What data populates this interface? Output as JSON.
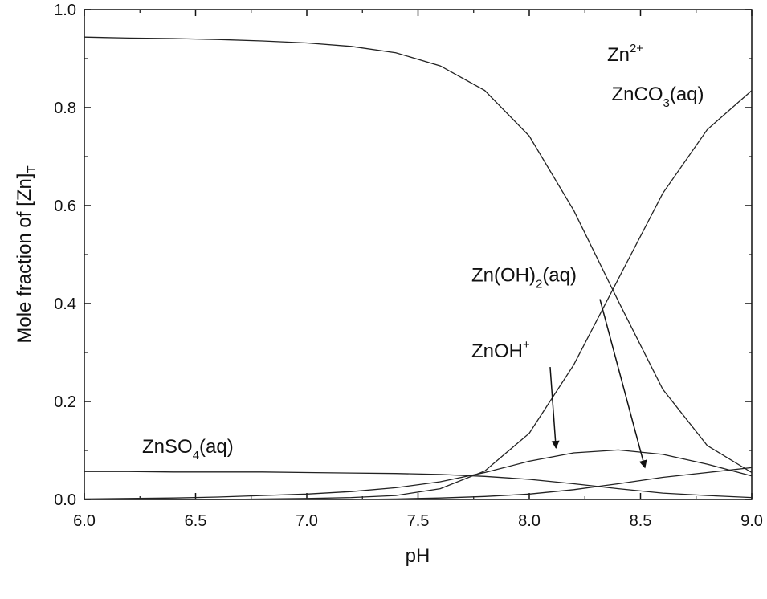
{
  "chart_data": {
    "type": "line",
    "xlabel": "pH",
    "ylabel": {
      "main": "Mole fraction of [Zn]",
      "sub": "T"
    },
    "xlim": [
      6.0,
      9.0
    ],
    "ylim": [
      0.0,
      1.0
    ],
    "xticks": [
      "6.0",
      "6.5",
      "7.0",
      "7.5",
      "8.0",
      "8.5",
      "9.0"
    ],
    "yticks": [
      "0.0",
      "0.2",
      "0.4",
      "0.6",
      "0.8",
      "1.0"
    ],
    "grid": false,
    "legend": "none",
    "x": [
      6.0,
      6.2,
      6.4,
      6.6,
      6.8,
      7.0,
      7.2,
      7.4,
      7.6,
      7.8,
      8.0,
      8.2,
      8.4,
      8.6,
      8.8,
      9.0
    ],
    "series": [
      {
        "name": "Zn2+",
        "values": [
          0.944,
          0.942,
          0.941,
          0.939,
          0.936,
          0.932,
          0.925,
          0.912,
          0.885,
          0.835,
          0.742,
          0.59,
          0.405,
          0.225,
          0.11,
          0.055
        ]
      },
      {
        "name": "ZnCO3(aq)",
        "values": [
          0.0,
          0.0,
          0.0,
          0.0,
          0.001,
          0.002,
          0.004,
          0.008,
          0.022,
          0.058,
          0.135,
          0.275,
          0.45,
          0.625,
          0.755,
          0.835
        ]
      },
      {
        "name": "Zn(OH)2(aq)",
        "values": [
          0.0,
          0.0,
          0.0,
          0.0,
          0.0,
          0.0,
          0.0,
          0.001,
          0.003,
          0.006,
          0.011,
          0.02,
          0.032,
          0.045,
          0.055,
          0.065
        ]
      },
      {
        "name": "ZnOH+",
        "values": [
          0.001,
          0.002,
          0.003,
          0.005,
          0.008,
          0.011,
          0.016,
          0.024,
          0.036,
          0.055,
          0.078,
          0.095,
          0.101,
          0.092,
          0.072,
          0.048
        ]
      },
      {
        "name": "ZnSO4(aq)",
        "values": [
          0.057,
          0.057,
          0.056,
          0.056,
          0.056,
          0.055,
          0.054,
          0.053,
          0.051,
          0.047,
          0.041,
          0.032,
          0.022,
          0.013,
          0.008,
          0.004
        ]
      }
    ],
    "annotations": [
      {
        "id": "zn2",
        "main": "Zn",
        "sup": "2+",
        "x": 8.35,
        "y": 0.895
      },
      {
        "id": "znco3",
        "main": "ZnCO",
        "sub": "3",
        "tail": "(aq)",
        "x": 8.37,
        "y": 0.815
      },
      {
        "id": "znoh2",
        "main": "Zn(OH)",
        "sub": "2",
        "tail": "(aq)",
        "x": 7.74,
        "y": 0.445,
        "arrow_to": [
          8.52,
          0.065
        ]
      },
      {
        "id": "znoh",
        "main": "ZnOH",
        "sup": "+",
        "x": 7.74,
        "y": 0.29,
        "arrow_to": [
          8.12,
          0.105
        ]
      },
      {
        "id": "znso4",
        "main": "ZnSO",
        "sub": "4",
        "tail": "(aq)",
        "x": 6.26,
        "y": 0.095
      }
    ]
  }
}
